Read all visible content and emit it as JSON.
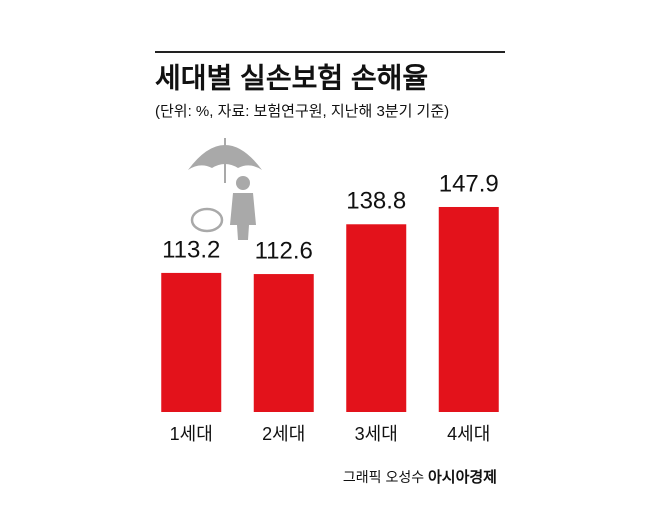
{
  "chart_data": {
    "type": "bar",
    "title": "세대별 실손보험 손해율",
    "subtitle": "(단위: %, 자료: 보험연구원, 지난해 3분기 기준)",
    "categories": [
      "1세대",
      "2세대",
      "3세대",
      "4세대"
    ],
    "values": [
      113.2,
      112.6,
      138.8,
      147.9
    ],
    "color": "#e3121b",
    "ylim": [
      40,
      150
    ],
    "credit": "그래픽 오성수",
    "brand": "아시아경제"
  }
}
